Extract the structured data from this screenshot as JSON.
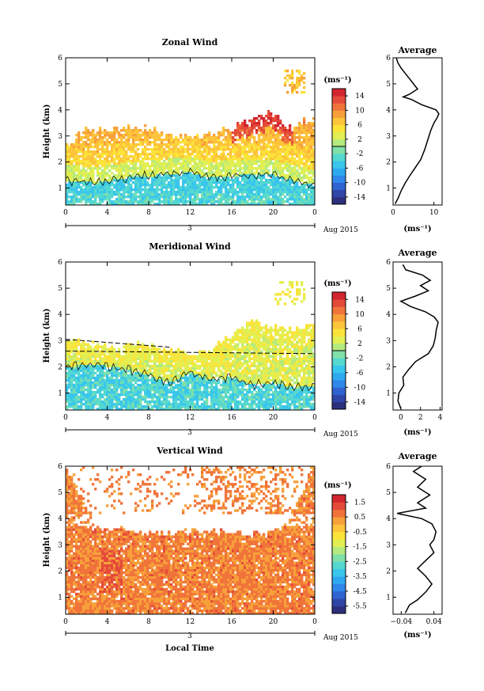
{
  "figure": {
    "xlabel": "Local Time",
    "date_label": "Aug 2015",
    "day_label": "3",
    "ylabel": "Height (km)",
    "avg_unit": "(ms⁻¹)",
    "cbar_unit": "(ms⁻¹)"
  },
  "chart_data": [
    {
      "type": "heatmap",
      "title": "Zonal Wind",
      "xlabel": "Local Time",
      "ylabel": "Height (km)",
      "x_ticks": [
        "0",
        "4",
        "8",
        "12",
        "16",
        "20",
        "0"
      ],
      "y_ticks": [
        "1",
        "2",
        "3",
        "4",
        "5",
        "6"
      ],
      "xlim": [
        0,
        24
      ],
      "ylim": [
        0.35,
        6.0
      ],
      "colorbar": {
        "unit": "(ms⁻¹)",
        "ticks": [
          "14",
          "10",
          "6",
          "2",
          "-2",
          "-6",
          "-10",
          "-14"
        ],
        "range": [
          -16,
          16
        ]
      },
      "values_desc": {
        "top_profile": [
          [
            0,
            2.6
          ],
          [
            2,
            3.3
          ],
          [
            4,
            3.2
          ],
          [
            6,
            3.3
          ],
          [
            8,
            3.3
          ],
          [
            10,
            3.0
          ],
          [
            12,
            3.0
          ],
          [
            14,
            3.1
          ],
          [
            16,
            3.3
          ],
          [
            18,
            3.7
          ],
          [
            20,
            3.9
          ],
          [
            21,
            3.4
          ],
          [
            22,
            3.3
          ],
          [
            23,
            3.6
          ],
          [
            24,
            3.6
          ]
        ],
        "negative_layer_top": [
          [
            0,
            1.3
          ],
          [
            3,
            1.2
          ],
          [
            6,
            1.4
          ],
          [
            9,
            1.5
          ],
          [
            12,
            1.6
          ],
          [
            14,
            1.4
          ],
          [
            17,
            1.5
          ],
          [
            20,
            1.5
          ],
          [
            22,
            1.3
          ],
          [
            24,
            1.1
          ]
        ],
        "peak_value": 14,
        "peak_location": {
          "x": 19.5,
          "y": 3.7
        }
      },
      "average_profile": {
        "title": "Average",
        "xlabel": "(ms⁻¹)",
        "x_ticks": [
          "0",
          "10"
        ],
        "xlim": [
          0,
          12
        ],
        "y": [
          0.4,
          0.6,
          0.9,
          1.2,
          1.5,
          1.8,
          2.1,
          2.5,
          2.9,
          3.2,
          3.5,
          3.7,
          3.85,
          4.0,
          4.2,
          4.4,
          4.5,
          4.6,
          4.8,
          5.0,
          5.2,
          5.4,
          5.6,
          5.8,
          6.0
        ],
        "x": [
          0.5,
          1.2,
          2.0,
          3.0,
          4.2,
          5.5,
          6.8,
          7.8,
          8.6,
          9.2,
          10.0,
          10.8,
          11.2,
          10.5,
          7.0,
          4.5,
          2.5,
          4.0,
          6.0,
          5.0,
          4.0,
          3.0,
          2.0,
          1.2,
          0.8
        ]
      }
    },
    {
      "type": "heatmap",
      "title": "Meridional Wind",
      "xlabel": "Local Time",
      "ylabel": "Height (km)",
      "x_ticks": [
        "0",
        "4",
        "8",
        "12",
        "16",
        "20",
        "0"
      ],
      "y_ticks": [
        "1",
        "2",
        "3",
        "4",
        "5",
        "6"
      ],
      "xlim": [
        0,
        24
      ],
      "ylim": [
        0.35,
        6.0
      ],
      "colorbar": {
        "unit": "(ms⁻¹)",
        "ticks": [
          "14",
          "10",
          "6",
          "2",
          "-2",
          "-6",
          "-10",
          "-14"
        ],
        "range": [
          -16,
          16
        ]
      },
      "values_desc": {
        "top_profile": [
          [
            0,
            3.1
          ],
          [
            2,
            2.9
          ],
          [
            4,
            2.8
          ],
          [
            6,
            2.8
          ],
          [
            8,
            2.9
          ],
          [
            10,
            2.7
          ],
          [
            12,
            2.5
          ],
          [
            14,
            2.6
          ],
          [
            16,
            3.3
          ],
          [
            18,
            3.8
          ],
          [
            20,
            3.5
          ],
          [
            22,
            3.4
          ],
          [
            24,
            3.6
          ]
        ],
        "negative_layer_top": [
          [
            0,
            2.0
          ],
          [
            3,
            2.1
          ],
          [
            6,
            1.9
          ],
          [
            8,
            1.7
          ],
          [
            10,
            1.4
          ],
          [
            12,
            1.8
          ],
          [
            14,
            1.5
          ],
          [
            16,
            1.6
          ],
          [
            18,
            1.3
          ],
          [
            20,
            1.4
          ],
          [
            22,
            1.2
          ],
          [
            24,
            1.3
          ]
        ]
      },
      "average_profile": {
        "title": "Average",
        "xlabel": "(ms⁻¹)",
        "x_ticks": [
          "0",
          "2",
          "4"
        ],
        "xlim": [
          -0.8,
          4.2
        ],
        "y": [
          0.4,
          0.7,
          1.0,
          1.3,
          1.6,
          1.9,
          2.2,
          2.5,
          2.8,
          3.1,
          3.4,
          3.7,
          3.9,
          4.1,
          4.3,
          4.5,
          4.7,
          4.9,
          5.1,
          5.3,
          5.5,
          5.7,
          5.9
        ],
        "x": [
          0.0,
          -0.3,
          -0.2,
          0.3,
          0.2,
          0.8,
          1.5,
          2.8,
          3.3,
          3.5,
          3.6,
          3.8,
          3.4,
          2.5,
          1.0,
          0.0,
          1.5,
          2.8,
          2.0,
          3.0,
          2.2,
          0.5,
          0.2
        ]
      }
    },
    {
      "type": "heatmap",
      "title": "Vertical Wind",
      "xlabel": "Local Time",
      "ylabel": "Height (km)",
      "x_ticks": [
        "0",
        "4",
        "8",
        "12",
        "16",
        "20",
        "0"
      ],
      "y_ticks": [
        "1",
        "2",
        "3",
        "4",
        "5",
        "6"
      ],
      "xlim": [
        0,
        24
      ],
      "ylim": [
        0.35,
        6.0
      ],
      "colorbar": {
        "unit": "(ms⁻¹)",
        "ticks": [
          "1.5",
          "0.5",
          "-0.5",
          "-1.5",
          "-2.5",
          "-3.5",
          "-4.5",
          "-5.5"
        ],
        "range": [
          -6,
          2
        ]
      },
      "values_desc": {
        "top_profile": [
          [
            0,
            6.0
          ],
          [
            3,
            3.6
          ],
          [
            6,
            3.6
          ],
          [
            9,
            3.4
          ],
          [
            12,
            3.5
          ],
          [
            15,
            3.6
          ],
          [
            18,
            3.4
          ],
          [
            21,
            3.6
          ],
          [
            24,
            6.0
          ]
        ],
        "dominant_value": 0.8
      },
      "average_profile": {
        "title": "Average",
        "xlabel": "(ms⁻¹)",
        "x_ticks": [
          "−0.04",
          "0.04"
        ],
        "xlim": [
          -0.06,
          0.06
        ],
        "y": [
          0.4,
          0.7,
          0.9,
          1.2,
          1.5,
          1.8,
          2.1,
          2.4,
          2.7,
          3.0,
          3.2,
          3.5,
          3.8,
          4.0,
          4.2,
          4.4,
          4.6,
          4.9,
          5.2,
          5.5,
          5.8,
          6.0
        ],
        "x": [
          -0.03,
          -0.02,
          0.0,
          0.02,
          0.035,
          0.02,
          0.0,
          0.02,
          0.04,
          0.03,
          0.04,
          0.045,
          0.035,
          0.01,
          -0.05,
          0.02,
          0.0,
          0.03,
          0.0,
          0.02,
          -0.01,
          0.01
        ]
      }
    }
  ]
}
